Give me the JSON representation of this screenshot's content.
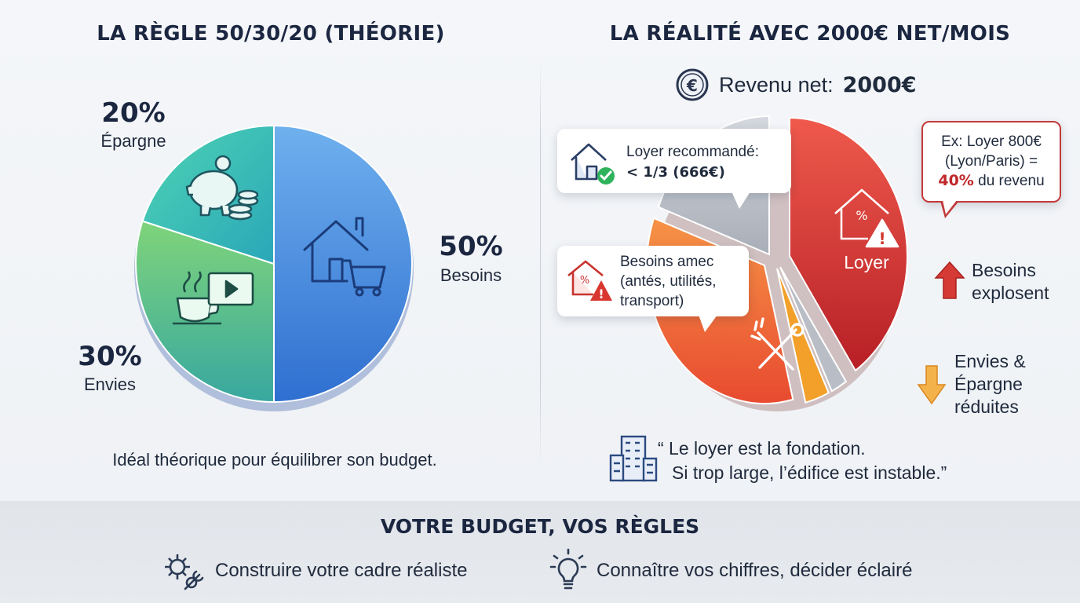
{
  "left": {
    "title": "LA RÈGLE 50/30/20 (THÉORIE)",
    "caption": "Idéal théorique pour équilibrer son budget.",
    "segments": [
      {
        "pct": "50%",
        "label": "Besoins",
        "value": 50,
        "color": "#3f80dc"
      },
      {
        "pct": "30%",
        "label": "Envies",
        "value": 30,
        "color": "#55c27a"
      },
      {
        "pct": "20%",
        "label": "Épargne",
        "value": 20,
        "color": "#32b5b2"
      }
    ]
  },
  "right": {
    "title": "LA RÉALITÉ AVEC 2000€ NET/MOIS",
    "revenue_label": "Revenu net:",
    "revenue_value": "2000€",
    "loyer_label": "Loyer",
    "bubble_recommended": {
      "line1": "Loyer recommandé:",
      "line2": "< 1/3 (666€)"
    },
    "bubble_example": {
      "line1": "Ex: Loyer 800€",
      "line2": "(Lyon/Paris) =",
      "line3_bold": "40%",
      "line3_rest": " du revenu"
    },
    "bubble_needs": {
      "line1": "Besoins amec",
      "line2": "(antés, utilités,",
      "line3": "transport)"
    },
    "besoins_explosent": {
      "line1": "Besoins",
      "line2": "explosent"
    },
    "envies_reduites": {
      "line1": "Envies &",
      "line2": "Épargne",
      "line3": "réduites"
    },
    "quote": {
      "line1": "“ Le loyer est la fondation.",
      "line2": "Si trop large, l’édifice est instable.”"
    },
    "colors": {
      "loyer": "#d2362f",
      "needs": "#f06a3a",
      "small": "#f2a02a",
      "grey": "#b9bec6"
    }
  },
  "footer": {
    "title": "VOTRE BUDGET, VOS RÈGLES",
    "item1": "Construire votre cadre réaliste",
    "item2": "Connaître vos chiffres, décider éclairé"
  }
}
